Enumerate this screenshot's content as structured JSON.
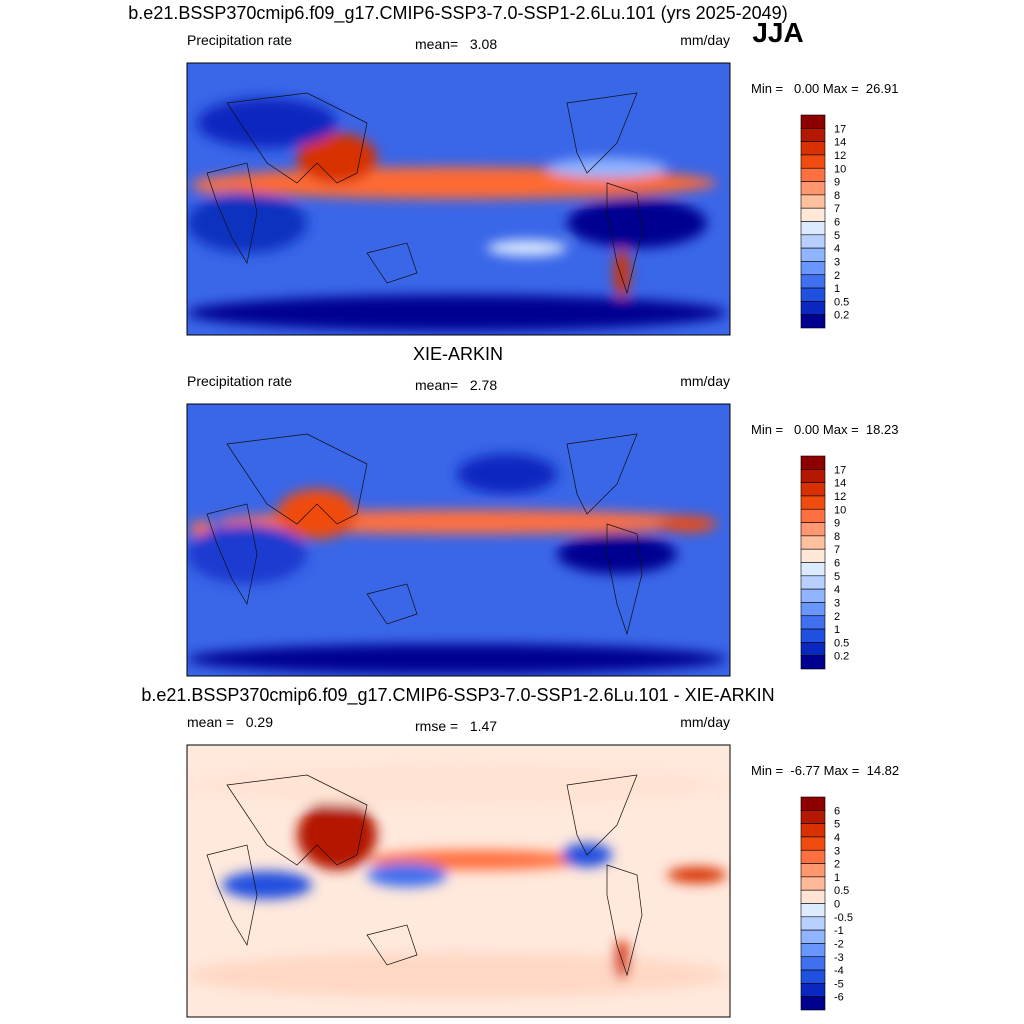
{
  "header": {
    "season": "JJA"
  },
  "panels": [
    {
      "title": "b.e21.BSSP370cmip6.f09_g17.CMIP6-SSP3-7.0-SSP1-2.6Lu.101 (yrs 2025-2049)",
      "left": "Precipitation rate",
      "center": "mean=   3.08",
      "right": "mm/day",
      "minmax": "Min =   0.00 Max =  26.91",
      "colorbar": {
        "labels": [
          "17",
          "14",
          "12",
          "10",
          "9",
          "8",
          "7",
          "6",
          "5",
          "4",
          "3",
          "2",
          "1",
          "0.5",
          "0.2"
        ],
        "colors": [
          "#8c0000",
          "#b41800",
          "#d83000",
          "#f04c10",
          "#ff7040",
          "#ff9870",
          "#ffc0a0",
          "#ffe8d8",
          "#dceaff",
          "#b8d0ff",
          "#90b4ff",
          "#6a96ff",
          "#4070f0",
          "#2050e0",
          "#0a28c0",
          "#000090"
        ]
      }
    },
    {
      "title": "XIE-ARKIN",
      "left": "Precipitation rate",
      "center": "mean=   2.78",
      "right": "mm/day",
      "minmax": "Min =   0.00 Max =  18.23",
      "colorbar": {
        "labels": [
          "17",
          "14",
          "12",
          "10",
          "9",
          "8",
          "7",
          "6",
          "5",
          "4",
          "3",
          "2",
          "1",
          "0.5",
          "0.2"
        ],
        "colors": [
          "#8c0000",
          "#b41800",
          "#d83000",
          "#f04c10",
          "#ff7040",
          "#ff9870",
          "#ffc0a0",
          "#ffe8d8",
          "#dceaff",
          "#b8d0ff",
          "#90b4ff",
          "#6a96ff",
          "#4070f0",
          "#2050e0",
          "#0a28c0",
          "#000090"
        ]
      }
    },
    {
      "title": "b.e21.BSSP370cmip6.f09_g17.CMIP6-SSP3-7.0-SSP1-2.6Lu.101 - XIE-ARKIN",
      "left": "mean =   0.29",
      "center": "rmse =   1.47",
      "right": "mm/day",
      "minmax": "Min =  -6.77 Max =  14.82",
      "colorbar": {
        "labels": [
          "6",
          "5",
          "4",
          "3",
          "2",
          "1",
          "0.5",
          "0",
          "-0.5",
          "-1",
          "-2",
          "-3",
          "-4",
          "-5",
          "-6"
        ],
        "colors": [
          "#8c0000",
          "#b41800",
          "#d83000",
          "#f04c10",
          "#ff7040",
          "#ff9870",
          "#ffb898",
          "#ffe4d4",
          "#dcebff",
          "#b8d0ff",
          "#90b4ff",
          "#6a96ff",
          "#4070f0",
          "#2050e0",
          "#0a28c0",
          "#000090"
        ]
      }
    }
  ]
}
